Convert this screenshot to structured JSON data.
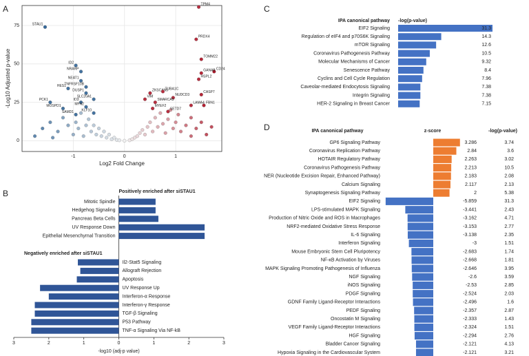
{
  "chart_data": [
    {
      "type": "scatter",
      "label": "A",
      "xlabel": "Log2 Fold Change",
      "ylabel": "-Log10 Adjusted p-value",
      "xlim": [
        -2,
        1.9
      ],
      "ylim": [
        -7,
        88
      ],
      "xticks": [
        -1,
        0,
        1
      ],
      "yticks": [
        0,
        25,
        50,
        75
      ],
      "grid": true,
      "negative_color": "#2f6598",
      "positive_color": "#b2182b",
      "neutral_color": "#f2f2f2",
      "genes": [
        "STAU1",
        "TPM4",
        "PRDX4",
        "TOMM22",
        "CD24",
        "GANAB",
        "HSPL2",
        "ID2",
        "NRARP",
        "NEAT1",
        "TNFRSF10B",
        "HES1",
        "DUSP1",
        "ID3",
        "SLC20A1",
        "PCK1",
        "MOSPD1",
        "MFN2",
        "SAMD1",
        "KLF10",
        "ZKSCAN5",
        "TUBA1C",
        "VIM",
        "NUDCD3",
        "CASP7",
        "SMARCA5",
        "FBN1",
        "LAMA4",
        "MYEF2",
        "SETD7"
      ],
      "x": [
        -1.55,
        1.45,
        1.4,
        1.5,
        1.75,
        1.5,
        1.45,
        -0.95,
        -0.85,
        -0.85,
        -0.75,
        -1.1,
        -0.75,
        -0.85,
        -0.6,
        -1.45,
        -1.2,
        -0.75,
        -0.95,
        -0.6,
        0.5,
        0.75,
        0.4,
        0.95,
        1.5,
        0.6,
        1.55,
        1.3,
        0.55,
        0.85
      ],
      "y": [
        74,
        87,
        66,
        53,
        45,
        44,
        40,
        49,
        45,
        39,
        35,
        34,
        31,
        25,
        27,
        25,
        21,
        22,
        17,
        18,
        31,
        32,
        27,
        28,
        30,
        25,
        23,
        23,
        21,
        19
      ],
      "background_x": [
        -1.75,
        -1.6,
        -1.45,
        -1.3,
        -1.2,
        -1.1,
        -1.0,
        -0.95,
        -0.9,
        -0.85,
        -0.8,
        -0.75,
        -0.7,
        -0.65,
        -0.6,
        -0.55,
        -0.5,
        -0.45,
        -0.4,
        -0.35,
        -0.3,
        -0.25,
        -0.2,
        -0.15,
        -0.1,
        0,
        0.1,
        0.15,
        0.2,
        0.25,
        0.3,
        0.35,
        0.4,
        0.45,
        0.5,
        0.55,
        0.6,
        0.65,
        0.7,
        0.75,
        0.8,
        0.85,
        0.9,
        0.95,
        1.0,
        1.05,
        1.1,
        1.2,
        1.3,
        1.4,
        1.5,
        1.6,
        1.7,
        1.3,
        -1.4
      ],
      "background_y": [
        3,
        8,
        12,
        6,
        15,
        10,
        4,
        12,
        8,
        18,
        3,
        10,
        14,
        6,
        10,
        4,
        8,
        3,
        6,
        2,
        4,
        1,
        2,
        0.5,
        0.3,
        0,
        0.3,
        1,
        2,
        3,
        5,
        7,
        4,
        9,
        12,
        6,
        15,
        9,
        18,
        11,
        5,
        14,
        20,
        8,
        12,
        17,
        6,
        10,
        15,
        8,
        12,
        4,
        9,
        3,
        2
      ]
    },
    {
      "type": "diverging-bar",
      "label": "B",
      "xlabel": "-log10 (adj-p value)",
      "color": "#2f5597",
      "xlim": [
        -3,
        3
      ],
      "xticks": [
        {
          "value": -3,
          "label": "3"
        },
        {
          "value": -2,
          "label": "2"
        },
        {
          "value": -1,
          "label": "1"
        },
        0,
        1,
        2,
        3
      ],
      "groups": [
        {
          "title": "Positively enriched after siSTAU1",
          "categories": [
            "Mitotic Spindle",
            "Hedgehog Signaling",
            "Pancreas Beta Cells",
            "UV Response Down",
            "Epithelial Mesenchymal Transition"
          ],
          "values": [
            1.05,
            1.05,
            1.13,
            2.45,
            2.45
          ]
        },
        {
          "title": "Negatively enriched after siSTAU1",
          "categories": [
            "Il2-Stat5 Signaling",
            "Allograft Rejection",
            "Apoptosis",
            "UV Response Up",
            "Interferon-α Response",
            "Interferon-γ Response",
            "TGF-β Signaling",
            "P53 Pathway",
            "TNF-α Signaling Via NF-kB"
          ],
          "values": [
            -1.17,
            -1.1,
            -1.2,
            -2.25,
            -2.0,
            -2.4,
            -2.4,
            -2.5,
            -2.5
          ]
        }
      ]
    },
    {
      "type": "table-bar",
      "label": "C",
      "headers": [
        "IPA canonical pathway",
        "-log(p-value)"
      ],
      "color": "#4472c4",
      "categories": [
        "EIF2 Signaling",
        "Regulation of eIF4 and p70S6K Signaling",
        "mTOR Signaling",
        "Coronavirus Pathogenesis Pathway",
        "Molecular Mechanisms of Cancer",
        "Senescence Pathway",
        "Cyclins and Cell Cycle Regulation",
        "Caveolar-mediated Endocytosis Signaling",
        "Integrin Signaling",
        "HER-2 Signaling in Breast Cancer"
      ],
      "values": [
        31.3,
        14.3,
        12.6,
        10.5,
        9.32,
        8.4,
        7.96,
        7.38,
        7.38,
        7.15
      ]
    },
    {
      "type": "zscore-table",
      "label": "D",
      "headers": [
        "IPA canonical pathway",
        "z-score",
        "-log(p-value)"
      ],
      "positive_color": "#ed7d31",
      "negative_color": "#4472c4",
      "categories": [
        "GP6 Signaling Pathway",
        "Coronavirus Replication Pathway",
        "HOTAIR Regulatory Pathway",
        "Coronavirus Pathogenesis Pathway",
        "NER (Nucleotide Excision Repair, Enhanced Pathway)",
        "Calcium Signaling",
        "Synaptogenesis Signaling Pathway",
        "EIF2 Signaling",
        "LPS-stimulated MAPK Signaling",
        "Production of Nitric Oxide and ROS in Macrophages",
        "NRF2-mediated Oxidative Stress Response",
        "IL-6 Signaling",
        "Interferon Signaling",
        "Mouse Embryonic Stem Cell Pluripotency",
        "NF-κB Activation by Viruses",
        "MAPK Signaling Promoting Pathogenesis of Influenza",
        "NGF Signaling",
        "iNOS Signaling",
        "PDGF Signaling",
        "GDNF Family Ligand-Receptor Interactions",
        "PEDF Signaling",
        "Oncostatin M Signaling",
        "VEGF Family Ligand-Receptor Interactions",
        "HGF Signaling",
        "Bladder Cancer Signaling",
        "Hypoxia Signaling in the Cardiovascular System"
      ],
      "zscores": [
        3.286,
        2.84,
        2.263,
        2.213,
        2.183,
        2.117,
        2,
        -5.859,
        -3.441,
        -3.162,
        -3.153,
        -3.138,
        -3,
        -2.683,
        -2.668,
        -2.646,
        -2.6,
        -2.53,
        -2.524,
        -2.496,
        -2.357,
        -2.333,
        -2.324,
        -2.294,
        -2.121,
        -2.121
      ],
      "pvalues": [
        3.74,
        3.6,
        3.02,
        10.5,
        2.08,
        2.13,
        5.38,
        31.3,
        2.43,
        4.71,
        2.77,
        2.35,
        1.51,
        1.74,
        1.81,
        3.95,
        3.59,
        2.85,
        2.03,
        1.6,
        2.87,
        1.43,
        1.51,
        2.76,
        4.13,
        3.21
      ]
    }
  ]
}
